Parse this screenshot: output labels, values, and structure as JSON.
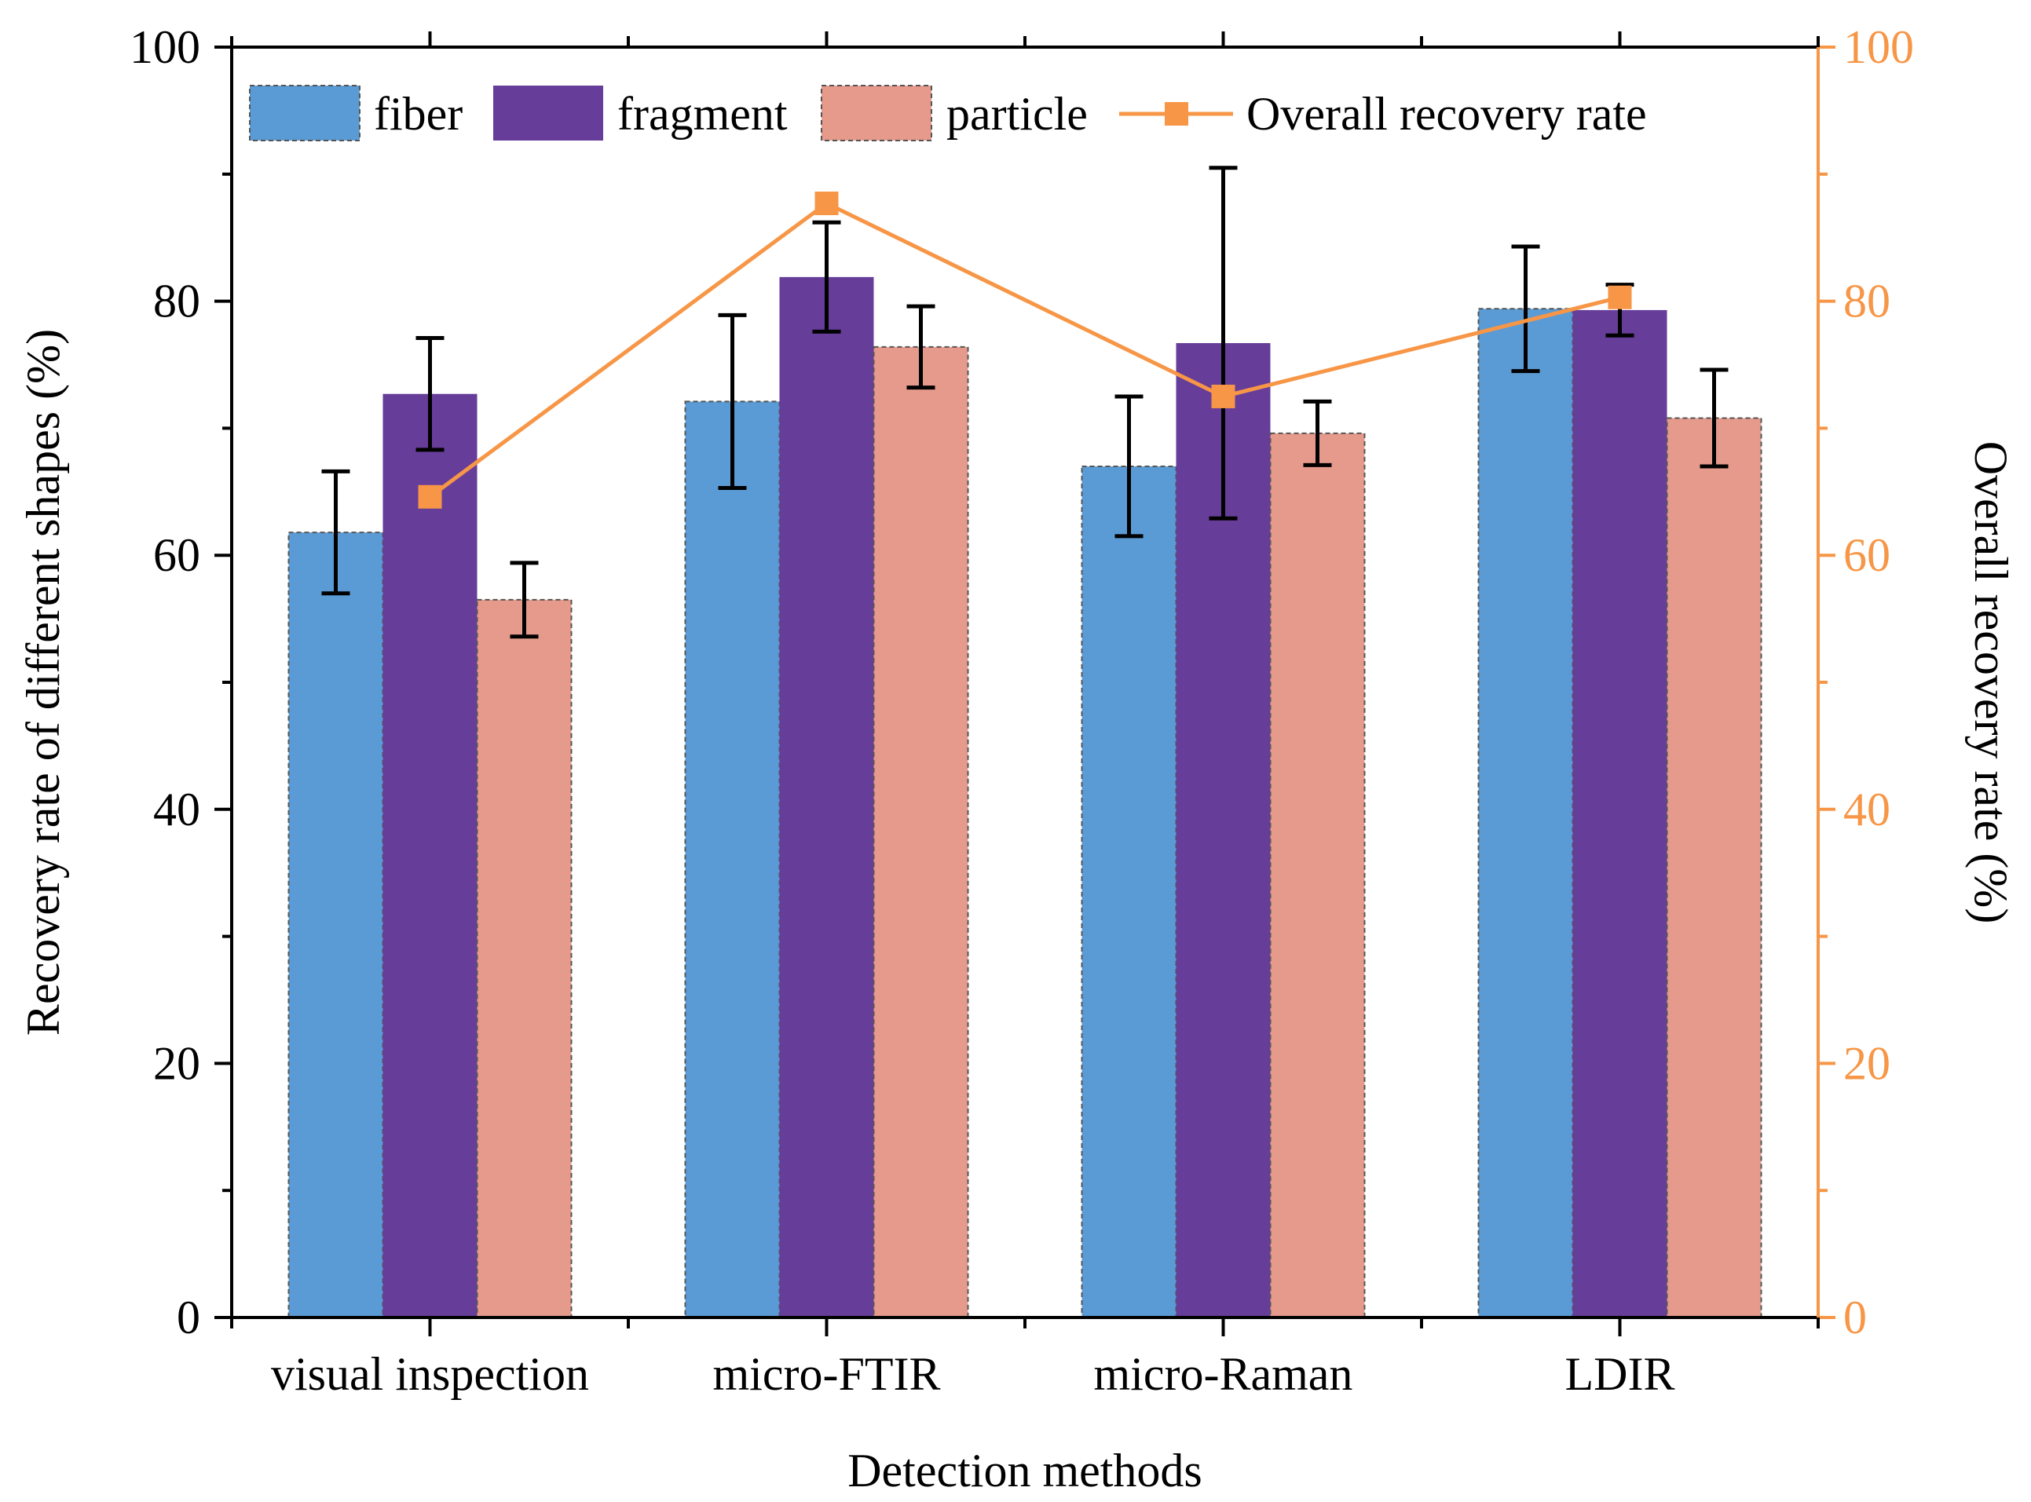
{
  "chart_data": {
    "type": "bar",
    "xlabel": "Detection methods",
    "ylabel": "Recovery rate of different shapes (%)",
    "ylabel_right": "Overall recovery rate (%)",
    "ylim": [
      0,
      100
    ],
    "ylim_right": [
      0,
      100
    ],
    "yticks": [
      "0",
      "20",
      "40",
      "60",
      "80",
      "100"
    ],
    "yticks_right": [
      "0",
      "20",
      "40",
      "60",
      "80",
      "100"
    ],
    "categories": [
      "visual inspection",
      "micro-FTIR",
      "micro-Raman",
      "LDIR"
    ],
    "series": [
      {
        "name": "fiber",
        "type": "bar",
        "color": "#5b9bd5",
        "dashed_border": true,
        "values": [
          61.8,
          72.1,
          67.0,
          79.4
        ],
        "errors": [
          4.8,
          6.8,
          5.5,
          4.9
        ]
      },
      {
        "name": "fragment",
        "type": "bar",
        "color": "#663d99",
        "dashed_border": false,
        "values": [
          72.7,
          81.9,
          76.7,
          79.3
        ],
        "errors": [
          4.4,
          4.3,
          13.8,
          2.0
        ]
      },
      {
        "name": "particle",
        "type": "bar",
        "color": "#e59a8c",
        "dashed_border": true,
        "values": [
          56.5,
          76.4,
          69.6,
          70.8
        ],
        "errors": [
          2.9,
          3.2,
          2.5,
          3.8
        ]
      },
      {
        "name": "Overall recovery rate",
        "type": "line",
        "axis": "right",
        "color": "#f79646",
        "values": [
          64.6,
          87.7,
          72.5,
          80.3
        ]
      }
    ],
    "legend": {
      "location": "top-left",
      "entries": [
        "fiber",
        "fragment",
        "particle",
        "Overall recovery rate"
      ]
    },
    "grid": false,
    "axis_color_right": "#f79646"
  }
}
